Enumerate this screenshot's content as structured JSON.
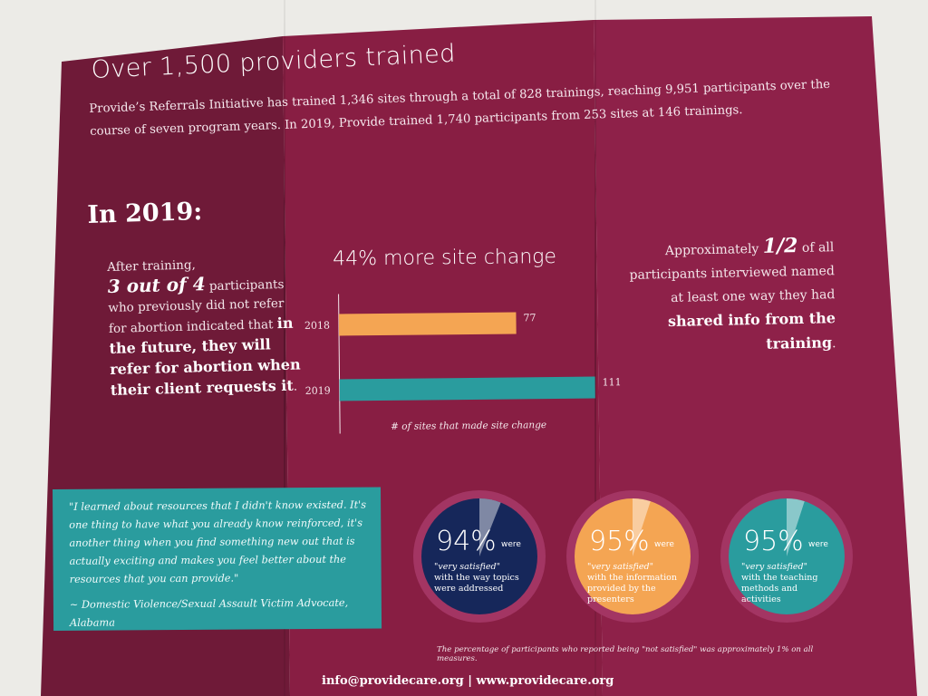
{
  "colors": {
    "background": "#ecebe7",
    "panel": "#8a1f45",
    "panel_left": "#6f1a38",
    "teal": "#2a9c9e",
    "orange": "#f4a553",
    "navy": "#16275a"
  },
  "brochure": {
    "headline": "Over 1,500 providers trained",
    "intro": "Provide’s Referrals Initiative has trained 1,346 sites through a total of 828 trainings, reaching 9,951 participants over the course of seven program years. In 2019, Provide trained 1,740 participants from 253 sites at 146 trainings.",
    "year_heading": "In 2019:",
    "left": {
      "p1": "After training,",
      "p2": "3 out of 4",
      "p3": " participants who previously did not refer for abortion indicated that ",
      "p4": "in the future, they will refer for abortion when their client requests it",
      "p5": "."
    },
    "right": {
      "p1": "Approximately ",
      "p2": "1/2",
      "p3": " of all participants interviewed named at least one way they had ",
      "p4": "shared info from the training",
      "p5": "."
    },
    "quote": {
      "text": "\"I learned about resources that I didn't know existed. It's one thing to have what you already know reinforced, it's another thing when you find something new out that is actually exciting and makes you feel better about the resources that you can provide.\"",
      "attribution": "~ Domestic Violence/Sexual Assault Victim Advocate, Alabama"
    },
    "stats": [
      {
        "pct": "94%",
        "were": "were",
        "vs": "\"very satisfied\"",
        "desc": "with the way topics were addressed",
        "color": "#16275a",
        "icon": "progress-ring"
      },
      {
        "pct": "95%",
        "were": "were",
        "vs": "\"very satisfied\"",
        "desc": "with the information provided by the presenters",
        "color": "#f4a553",
        "icon": "progress-ring"
      },
      {
        "pct": "95%",
        "were": "were",
        "vs": "\"very satisfied\"",
        "desc": "with the teaching methods and activities",
        "color": "#2a9c9e",
        "icon": "progress-ring"
      }
    ],
    "stat_values": [
      94,
      95,
      95
    ],
    "footnote": "The percentage of participants who reported being \"not satisfied\" was approximately 1% on all measures.",
    "contact": "info@providecare.org | www.providecare.org"
  },
  "chart_data": {
    "type": "bar",
    "orientation": "horizontal",
    "title": "44% more site change",
    "categories": [
      "2018",
      "2019"
    ],
    "values": [
      77,
      111
    ],
    "colors": [
      "#f4a553",
      "#2a9c9e"
    ],
    "xlabel": "# of sites that made site change",
    "xlim": [
      0,
      111
    ],
    "grid": false
  }
}
